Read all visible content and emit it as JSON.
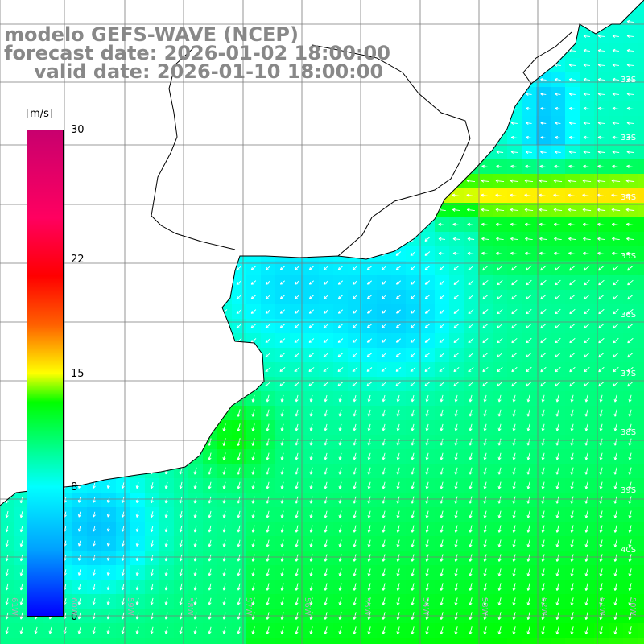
{
  "title": {
    "line1": "modelo GEFS-WAVE (NCEP)",
    "line2": "forecast date: 2026-01-02 18:00:00",
    "line3": "valid date: 2026-01-10 18:00:00"
  },
  "colorbar": {
    "unit": "[m/s]",
    "ticks": [
      {
        "label": "30",
        "value": 30
      },
      {
        "label": "22",
        "value": 22
      },
      {
        "label": "15",
        "value": 15
      },
      {
        "label": "8",
        "value": 8
      },
      {
        "label": "0",
        "value": 0
      }
    ],
    "range": [
      0,
      30
    ],
    "colors": [
      "#0000ff",
      "#00a0ff",
      "#00ffff",
      "#00ff00",
      "#ffff00",
      "#ff6000",
      "#ff0000",
      "#ff0060",
      "#c8006e"
    ]
  },
  "axes": {
    "lat_labels": [
      "32S",
      "33S",
      "34S",
      "35S",
      "36S",
      "37S",
      "38S",
      "39S",
      "40S"
    ],
    "lon_labels": [
      "61W",
      "60W",
      "59W",
      "58W",
      "57W",
      "56W",
      "55W",
      "54W",
      "53W",
      "52W",
      "51W",
      "50W"
    ]
  },
  "colors": {
    "land": "#ffffff",
    "coastline": "#000000",
    "grid": "#7a7a7a",
    "arrow": "#ffffff",
    "title_text": "#888888"
  }
}
